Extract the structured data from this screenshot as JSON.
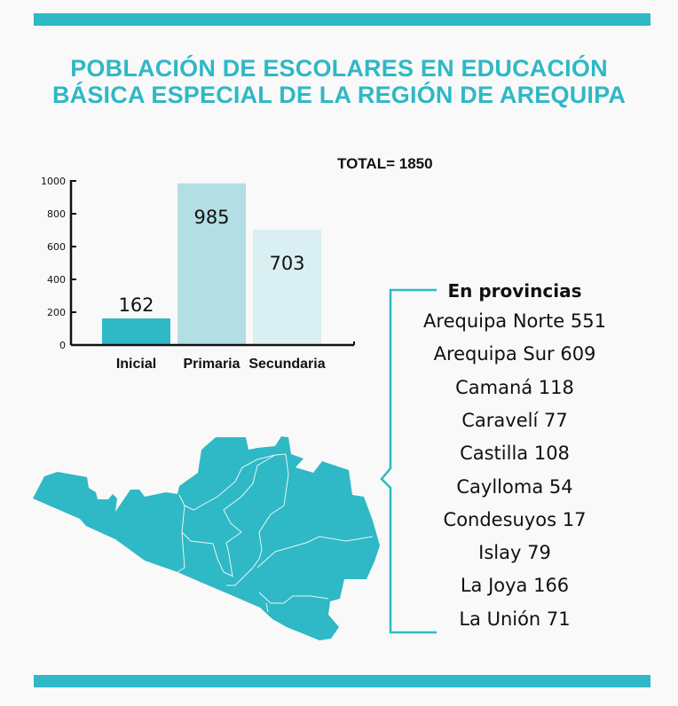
{
  "title_lines": [
    "POBLACIÓN DE ESCOLARES EN EDUCACIÓN",
    "BÁSICA ESPECIAL DE LA REGIÓN DE AREQUIPA"
  ],
  "total_label": "TOTAL= 1850",
  "colors": {
    "accent": "#2fb8c5",
    "primaria": "#b3dee4",
    "secundaria": "#daeff2"
  },
  "chart_data": {
    "type": "bar",
    "categories": [
      "Inicial",
      "Primaria",
      "Secundaria"
    ],
    "values": [
      162,
      985,
      703
    ],
    "data_labels": [
      "162",
      "985",
      "703"
    ],
    "yticks": [
      0,
      200,
      400,
      600,
      800,
      1000
    ],
    "ylim": [
      0,
      1000
    ],
    "bar_colors": [
      "#2fb8c5",
      "#b3dee4",
      "#daeff2"
    ],
    "grid": false
  },
  "provinces": {
    "heading": "En provincias",
    "items": [
      "Arequipa Norte 551",
      "Arequipa Sur 609",
      "Camaná 118",
      "Caravelí 77",
      "Castilla 108",
      "Caylloma 54",
      "Condesuyos 17",
      "Islay 79",
      "La Joya 166",
      "La Unión 71"
    ]
  },
  "map_icon": "arequipa-region-map"
}
